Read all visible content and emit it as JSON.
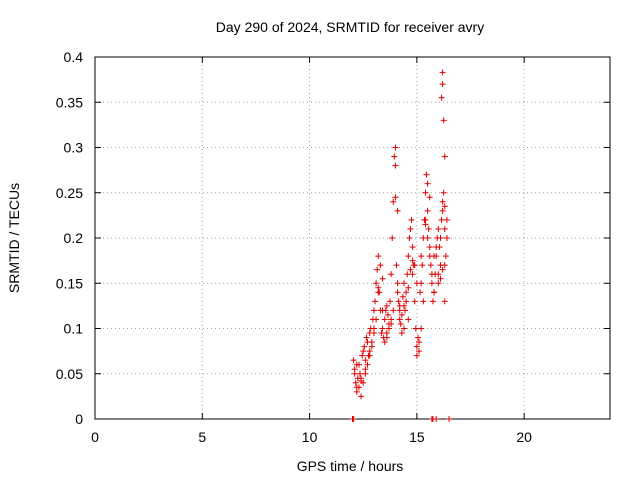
{
  "chart_data": {
    "type": "scatter",
    "title": "Day 290 of 2024, SRMTID for receiver avry",
    "xlabel": "GPS time / hours",
    "ylabel": "SRMTID / TECUs",
    "xlim": [
      0,
      24
    ],
    "ylim": [
      0,
      0.4
    ],
    "x_ticks": [
      0,
      5,
      10,
      15,
      20
    ],
    "y_ticks": [
      0,
      0.05,
      0.1,
      0.15,
      0.2,
      0.25,
      0.3,
      0.35,
      0.4
    ],
    "x_tick_labels": [
      "0",
      "5",
      "10",
      "15",
      "20"
    ],
    "y_tick_labels": [
      "0",
      "0.05",
      "0.1",
      "0.15",
      "0.2",
      "0.25",
      "0.3",
      "0.35",
      "0.4"
    ],
    "grid": true,
    "grid_style": "dotted",
    "marker": "plus",
    "series_color": "#dd0000",
    "series": [
      {
        "x": [
          12.05,
          12.1,
          12.15,
          12.2,
          12.25,
          12.3,
          12.35,
          12.4,
          12.45,
          12.5,
          12.55,
          12.6,
          12.65,
          12.7,
          12.75,
          12.8,
          12.85,
          12.9,
          12.95,
          13.0,
          13.05,
          13.1,
          13.15,
          13.2,
          13.25,
          13.3,
          13.35,
          13.4,
          13.45,
          13.5,
          13.55,
          13.6,
          13.65,
          13.7,
          13.75,
          13.8,
          13.85,
          13.9,
          13.95,
          14.0,
          14.05,
          14.1,
          14.15,
          14.2,
          14.25,
          14.3,
          14.35,
          14.4,
          14.45,
          14.5,
          14.55,
          14.6,
          14.65,
          14.7,
          14.75,
          14.8,
          14.85,
          14.9,
          14.95,
          15.0,
          15.05,
          15.1,
          15.15,
          15.2,
          15.25,
          15.3,
          15.35,
          15.4,
          15.45,
          15.5,
          15.55,
          15.6,
          15.65,
          15.7,
          15.75,
          15.8,
          15.85,
          15.9,
          15.95,
          16.0,
          16.05,
          16.1,
          16.15,
          16.2,
          16.25,
          16.3,
          16.35,
          16.4,
          12.1,
          12.2,
          12.3,
          12.4,
          12.5,
          12.6,
          12.7,
          12.8,
          12.9,
          13.0,
          13.1,
          13.2,
          13.3,
          13.4,
          13.5,
          13.6,
          13.7,
          13.8,
          13.9,
          14.0,
          14.1,
          14.2,
          14.3,
          14.4,
          14.5,
          14.6,
          14.7,
          14.8,
          14.9,
          15.0,
          15.1,
          15.2,
          15.3,
          15.4,
          15.5,
          15.6,
          15.7,
          15.8,
          15.9,
          16.0,
          16.1,
          16.2,
          16.3,
          16.4,
          12.2,
          12.4,
          12.6,
          12.8,
          13.0,
          13.2,
          13.4,
          13.6,
          13.8,
          14.0,
          14.1,
          14.2,
          14.4,
          14.6,
          14.8,
          15.0,
          15.2,
          15.4,
          15.5,
          15.6,
          15.8,
          16.0,
          16.1,
          16.2,
          16.3,
          16.15,
          16.2,
          16.2,
          16.25,
          16.3,
          16.3,
          12.0,
          12.05,
          15.7,
          15.75,
          15.9,
          16.5
        ],
        "y": [
          0.065,
          0.055,
          0.04,
          0.035,
          0.045,
          0.06,
          0.05,
          0.042,
          0.07,
          0.075,
          0.08,
          0.065,
          0.09,
          0.085,
          0.07,
          0.095,
          0.1,
          0.08,
          0.11,
          0.12,
          0.13,
          0.15,
          0.165,
          0.18,
          0.14,
          0.12,
          0.095,
          0.1,
          0.09,
          0.11,
          0.12,
          0.125,
          0.115,
          0.1,
          0.13,
          0.16,
          0.2,
          0.24,
          0.29,
          0.28,
          0.17,
          0.15,
          0.13,
          0.12,
          0.105,
          0.115,
          0.135,
          0.15,
          0.12,
          0.14,
          0.16,
          0.18,
          0.2,
          0.21,
          0.22,
          0.19,
          0.17,
          0.13,
          0.1,
          0.08,
          0.09,
          0.075,
          0.14,
          0.15,
          0.17,
          0.2,
          0.22,
          0.25,
          0.27,
          0.23,
          0.21,
          0.19,
          0.17,
          0.15,
          0.13,
          0.14,
          0.16,
          0.18,
          0.2,
          0.21,
          0.19,
          0.17,
          0.22,
          0.23,
          0.25,
          0.21,
          0.18,
          0.2,
          0.05,
          0.03,
          0.035,
          0.025,
          0.04,
          0.055,
          0.06,
          0.075,
          0.085,
          0.095,
          0.11,
          0.14,
          0.17,
          0.155,
          0.085,
          0.095,
          0.105,
          0.11,
          0.12,
          0.245,
          0.14,
          0.11,
          0.095,
          0.125,
          0.13,
          0.145,
          0.165,
          0.175,
          0.17,
          0.07,
          0.085,
          0.1,
          0.13,
          0.22,
          0.2,
          0.18,
          0.16,
          0.14,
          0.19,
          0.16,
          0.2,
          0.24,
          0.17,
          0.22,
          0.06,
          0.045,
          0.05,
          0.07,
          0.1,
          0.145,
          0.12,
          0.09,
          0.105,
          0.3,
          0.23,
          0.125,
          0.1,
          0.11,
          0.16,
          0.15,
          0.18,
          0.215,
          0.26,
          0.245,
          0.18,
          0.15,
          0.155,
          0.165,
          0.13,
          0.355,
          0.383,
          0.37,
          0.33,
          0.29,
          0.235,
          0,
          0,
          0,
          0,
          0,
          0
        ]
      }
    ]
  }
}
